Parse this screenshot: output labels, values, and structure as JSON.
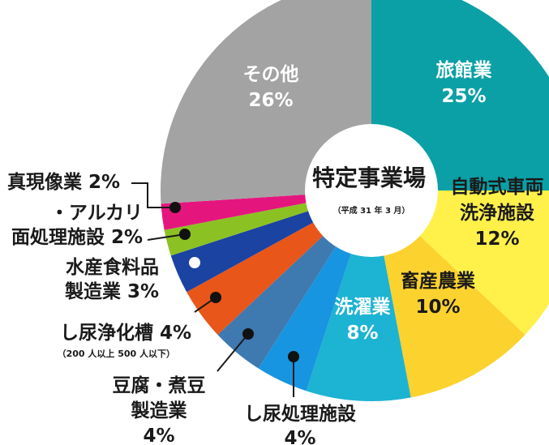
{
  "chart_data": {
    "type": "pie",
    "center_title": "特定事業場",
    "center_subtitle": "（平成 31 年 3 月）",
    "slices": [
      {
        "name_lines": [
          "旅館業"
        ],
        "value_label": "25%",
        "value": 25,
        "color": "#0aa0a6",
        "text_color": "#ffffff"
      },
      {
        "name_lines": [
          "自動式車両",
          "洗浄施設"
        ],
        "value_label": "12%",
        "value": 12,
        "color": "#fff04a",
        "text_color": "#1a1a1a"
      },
      {
        "name_lines": [
          "畜産農業"
        ],
        "value_label": "10%",
        "value": 10,
        "color": "#fcd22e",
        "text_color": "#1a1a1a"
      },
      {
        "name_lines": [
          "洗濯業"
        ],
        "value_label": "8%",
        "value": 8,
        "color": "#1db3d3",
        "text_color": "#ffffff"
      },
      {
        "name_lines": [
          "し尿処理施設"
        ],
        "value_label": "4%",
        "value": 4,
        "color": "#1895e0",
        "text_color": "#1a1a1a",
        "marker": "#111111"
      },
      {
        "name_lines": [
          "豆腐・煮豆",
          "製造業"
        ],
        "value_label": "4%",
        "value": 4,
        "color": "#3e79b0",
        "text_color": "#1a1a1a",
        "marker": "#111111"
      },
      {
        "name_lines": [
          "し尿浄化槽 4%"
        ],
        "note": "（200 人以上 500 人以下）",
        "value": 4,
        "color": "#e8561a",
        "text_color": "#1a1a1a",
        "marker": "#111111"
      },
      {
        "name_lines": [
          "水産食料品",
          "製造業 3%"
        ],
        "value": 3,
        "color": "#1a43a2",
        "text_color": "#1a1a1a",
        "marker": "#ffffff"
      },
      {
        "name_lines": [
          "・アルカリ",
          "面処理施設 2%"
        ],
        "value": 2,
        "color": "#8cc124",
        "text_color": "#1a1a1a",
        "marker": "#111111"
      },
      {
        "name_lines": [
          "真現像業 2%"
        ],
        "value": 2,
        "color": "#e5157e",
        "text_color": "#1a1a1a",
        "marker": "#111111"
      },
      {
        "name_lines": [
          "その他"
        ],
        "value_label": "26%",
        "value": 26,
        "color": "#a3a3a3",
        "text_color": "#ffffff"
      }
    ]
  }
}
